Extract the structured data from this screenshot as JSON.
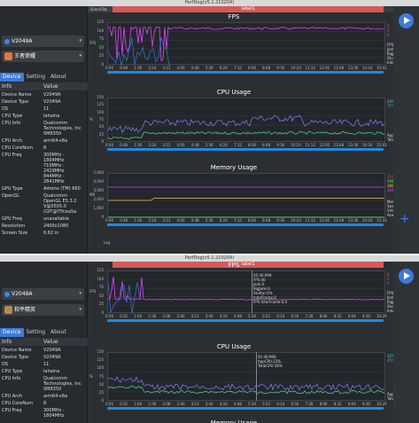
{
  "window1": {
    "title": "PerfDog(v5.1.210204)",
    "scene_tab": "SceneTab",
    "label": "label1",
    "device": "V2049A",
    "app": "王者荣耀",
    "tabs": [
      "Device",
      "Setting",
      "About"
    ],
    "info_header": {
      "k": "Info",
      "v": "Value"
    },
    "rows": [
      [
        "Device Name",
        "V2049A"
      ],
      [
        "Device Type",
        "V2049A"
      ],
      [
        "OS",
        "11"
      ],
      [
        "CPU Type",
        "lahaina"
      ],
      [
        "CPU Info",
        "Qualcomm\nTechnologies, Inc\nSM8350"
      ],
      [
        "CPU Arch",
        "arm64-v8a"
      ],
      [
        "CPU CoreNum",
        "8"
      ],
      [
        "CPU Freq",
        "300MHz -\n1804MHz\n710MHz -\n2419MHz\n844MHz -\n2841MHz"
      ],
      [
        "GPU Type",
        "Adreno (TM) 660"
      ],
      [
        "OpenGL",
        "Qualcomm\nOpenGL ES 3.2\nV@0505.0\n(GIT@f7fcea5a"
      ],
      [
        "GPU Freq",
        "unavailable"
      ],
      [
        "Resolution",
        "2400x1080"
      ],
      [
        "Screen Size",
        "6.62 in"
      ]
    ],
    "fps": {
      "title": "FPS",
      "ylabel": "FPS",
      "yticks": [
        "125",
        "100",
        "75",
        "50",
        "25",
        "0"
      ],
      "legend": [
        "FPS",
        "Jank(50)",
        "BigJank",
        "Stutter(%)",
        "InterFrame"
      ],
      "vals": [
        "0",
        "0",
        "0"
      ]
    },
    "cpu": {
      "title": "CPU Usage",
      "ylabel": "%",
      "yticks": [
        "150",
        "125",
        "100",
        "75",
        "50",
        "25",
        "0"
      ],
      "legend": [
        "AppCPU",
        "TotalCPU"
      ],
      "vals": [
        "24%",
        "75%"
      ]
    },
    "mem": {
      "title": "Memory Usage",
      "ylabel": "MB",
      "yticks": [
        "5,000",
        "4,000",
        "3,000",
        "2,000",
        "1,000",
        "0"
      ],
      "legend": [
        "Memory",
        "SwapMemory",
        "VirtualMemory",
        "AvailableMe..."
      ],
      "vals": [
        "1197MB",
        "0MB",
        "3887MB",
        "3647MB"
      ]
    },
    "xticks": [
      "0:00",
      "0:48",
      "1:36",
      "2:24",
      "3:12",
      "4:00",
      "4:48",
      "5:36",
      "6:24",
      "7:12",
      "8:00",
      "8:48",
      "9:36",
      "10:24",
      "11:12",
      "12:00",
      "12:48",
      "13:36",
      "14:24",
      "15:43"
    ],
    "log_label": "Log"
  },
  "window2": {
    "title": "PerfDog(v5.1.210204)",
    "label": "label1",
    "device": "V2049A",
    "app": "和平精英",
    "tabs": [
      "Device",
      "Setting",
      "About"
    ],
    "info_header": {
      "k": "Info",
      "v": "Value"
    },
    "rows": [
      [
        "Device Name",
        "V2049A"
      ],
      [
        "Device Type",
        "V2049A"
      ],
      [
        "OS",
        "11"
      ],
      [
        "CPU Type",
        "lahaina"
      ],
      [
        "CPU Info",
        "Qualcomm\nTechnologies, Inc\nSM8350"
      ],
      [
        "CPU Arch",
        "arm64-v8a"
      ],
      [
        "CPU CoreNum",
        "8"
      ],
      [
        "CPU Freq",
        "300MHz -\n1804MHz"
      ]
    ],
    "fps": {
      "title": "FPS",
      "ylabel": "FPS",
      "yticks": [
        "125",
        "100",
        "75",
        "50",
        "25",
        "0"
      ],
      "legend": [
        "FPS",
        "Jank",
        "BigJank",
        "Stutter",
        "InterFrame"
      ],
      "vals": [
        "0",
        "0",
        "0"
      ],
      "tooltip": [
        "05:40:999",
        "FPS:40",
        "Jank:0",
        "BigJank:0",
        "Stutter:0%",
        "InterFrame:0",
        "FPS InterFrame:0.0"
      ]
    },
    "cpu": {
      "title": "CPU Usage",
      "ylabel": "%",
      "yticks": [
        "150",
        "125",
        "100",
        "75",
        "50",
        "25",
        "0"
      ],
      "legend": [
        "AppCPU",
        "TotalCPU"
      ],
      "vals": [
        "32%",
        "45%"
      ],
      "tooltip": [
        "05:40:999",
        "AppCPU:23%",
        "TotalCPU:36%"
      ]
    },
    "mem": {
      "title": "Memory Usage"
    },
    "xticks": [
      "0:00",
      "0:32",
      "1:04",
      "1:36",
      "2:08",
      "2:40",
      "3:12",
      "3:44",
      "4:16",
      "4:48",
      "5:20",
      "5:52",
      "6:24",
      "6:56",
      "7:28",
      "8:00",
      "8:32",
      "9:04",
      "9:36",
      "10:29"
    ]
  },
  "colors": {
    "fps": "#e040fb",
    "cpu_app": "#4ade80",
    "cpu_total": "#7c83ff",
    "mem": "#f5c542",
    "accent": "#3d7bd9",
    "label": "#d45a5a"
  }
}
